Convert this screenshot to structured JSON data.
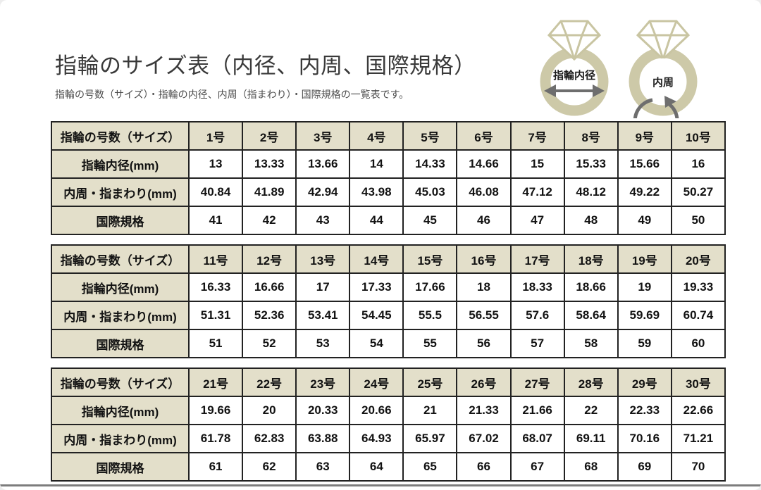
{
  "page": {
    "title": "指輪のサイズ表（内径、内周、国際規格）",
    "subtitle": "指輪の号数（サイズ）・指輪の内径、内周（指まわり）・国際規格の一覧表です。"
  },
  "illustration": {
    "inner_diameter_label": "指輪内径",
    "circumference_label": "内周"
  },
  "row_labels": {
    "size": "指輪の号数（サイズ）",
    "inner_diameter": "指輪内径(mm)",
    "circumference": "内周・指まわり(mm)",
    "international": "国際規格"
  },
  "tables": [
    {
      "sizes": [
        "1号",
        "2号",
        "3号",
        "4号",
        "5号",
        "6号",
        "7号",
        "8号",
        "9号",
        "10号"
      ],
      "inner_diameter_mm": [
        "13",
        "13.33",
        "13.66",
        "14",
        "14.33",
        "14.66",
        "15",
        "15.33",
        "15.66",
        "16"
      ],
      "circumference_mm": [
        "40.84",
        "41.89",
        "42.94",
        "43.98",
        "45.03",
        "46.08",
        "47.12",
        "48.12",
        "49.22",
        "50.27"
      ],
      "international_standard": [
        "41",
        "42",
        "43",
        "44",
        "45",
        "46",
        "47",
        "48",
        "49",
        "50"
      ]
    },
    {
      "sizes": [
        "11号",
        "12号",
        "13号",
        "14号",
        "15号",
        "16号",
        "17号",
        "18号",
        "19号",
        "20号"
      ],
      "inner_diameter_mm": [
        "16.33",
        "16.66",
        "17",
        "17.33",
        "17.66",
        "18",
        "18.33",
        "18.66",
        "19",
        "19.33"
      ],
      "circumference_mm": [
        "51.31",
        "52.36",
        "53.41",
        "54.45",
        "55.5",
        "56.55",
        "57.6",
        "58.64",
        "59.69",
        "60.74"
      ],
      "international_standard": [
        "51",
        "52",
        "53",
        "54",
        "55",
        "56",
        "57",
        "58",
        "59",
        "60"
      ]
    },
    {
      "sizes": [
        "21号",
        "22号",
        "23号",
        "24号",
        "25号",
        "26号",
        "27号",
        "28号",
        "29号",
        "30号"
      ],
      "inner_diameter_mm": [
        "19.66",
        "20",
        "20.33",
        "20.66",
        "21",
        "21.33",
        "21.66",
        "22",
        "22.33",
        "22.66"
      ],
      "circumference_mm": [
        "61.78",
        "62.83",
        "63.88",
        "64.93",
        "65.97",
        "67.02",
        "68.07",
        "69.11",
        "70.16",
        "71.21"
      ],
      "international_standard": [
        "61",
        "62",
        "63",
        "64",
        "65",
        "66",
        "67",
        "68",
        "69",
        "70"
      ]
    }
  ],
  "colors": {
    "header_bg": "#e3dfca",
    "table_border": "#222222",
    "ring_band": "#cdc9a8",
    "arrow_gray": "#6e6e6e"
  }
}
